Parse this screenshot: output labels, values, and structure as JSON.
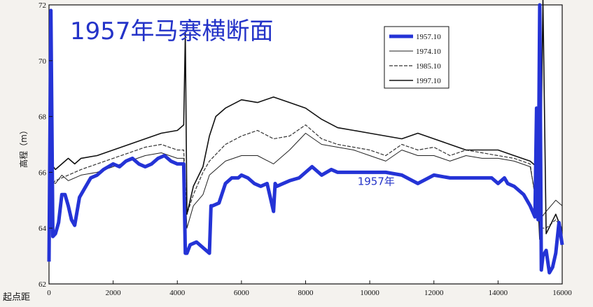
{
  "chart_data": {
    "type": "line",
    "title": "1957年马寨横断面",
    "ylabel": "高程（m）",
    "xlabel": "起点距",
    "xlim": [
      0,
      16000
    ],
    "ylim": [
      62,
      72
    ],
    "xticks": [
      0,
      2000,
      4000,
      6000,
      8000,
      10000,
      12000,
      14000,
      16000
    ],
    "yticks": [
      62,
      64,
      66,
      68,
      70,
      72
    ],
    "legend_position": "top-right",
    "annotation": {
      "text": "1957年",
      "x": 10200,
      "y": 65.55
    },
    "colors": {
      "1957.10": "#2433d6",
      "1974.10": "#222222",
      "1985.10": "#333333",
      "1997.10": "#111111"
    },
    "series": [
      {
        "name": "1957.10",
        "x": [
          0,
          60,
          120,
          200,
          300,
          400,
          500,
          600,
          700,
          800,
          950,
          1100,
          1300,
          1500,
          1700,
          2000,
          2200,
          2400,
          2600,
          2800,
          3000,
          3200,
          3400,
          3600,
          3800,
          4000,
          4200,
          4250,
          4300,
          4400,
          4600,
          4800,
          5000,
          5050,
          5100,
          5300,
          5500,
          5700,
          5900,
          6000,
          6200,
          6400,
          6600,
          6800,
          7000,
          7050,
          7100,
          7300,
          7500,
          7800,
          8000,
          8200,
          8500,
          8800,
          9000,
          9500,
          10000,
          10500,
          11000,
          11500,
          12000,
          12500,
          13000,
          13500,
          13800,
          14000,
          14200,
          14300,
          14500,
          14800,
          15000,
          15150,
          15200,
          15250,
          15300,
          15350,
          15400,
          15500,
          15600,
          15700,
          15800,
          15900,
          16000
        ],
        "y": [
          62.8,
          71.8,
          63.7,
          63.8,
          64.2,
          65.2,
          65.2,
          64.8,
          64.3,
          64.1,
          65.1,
          65.4,
          65.8,
          65.9,
          66.1,
          66.3,
          66.2,
          66.4,
          66.5,
          66.3,
          66.2,
          66.3,
          66.5,
          66.6,
          66.4,
          66.3,
          66.3,
          63.1,
          63.1,
          63.4,
          63.5,
          63.3,
          63.1,
          64.8,
          64.8,
          64.9,
          65.6,
          65.8,
          65.8,
          65.9,
          65.8,
          65.6,
          65.5,
          65.6,
          64.6,
          65.6,
          65.5,
          65.6,
          65.7,
          65.8,
          66.0,
          66.2,
          65.9,
          66.1,
          66.0,
          66.0,
          66.0,
          66.0,
          65.9,
          65.6,
          65.9,
          65.8,
          65.8,
          65.8,
          65.8,
          65.6,
          65.8,
          65.6,
          65.5,
          65.2,
          64.8,
          64.4,
          68.3,
          64.3,
          72.0,
          62.5,
          63.0,
          63.2,
          62.4,
          62.6,
          63.1,
          64.2,
          63.4
        ]
      },
      {
        "name": "1974.10",
        "x": [
          0,
          200,
          400,
          600,
          800,
          1000,
          1500,
          2000,
          2500,
          3000,
          3500,
          4000,
          4200,
          4300,
          4500,
          4800,
          5000,
          5500,
          6000,
          6500,
          7000,
          7500,
          8000,
          8500,
          9000,
          9500,
          10000,
          10500,
          11000,
          11500,
          12000,
          12500,
          13000,
          13500,
          14000,
          14500,
          15000,
          15300,
          15500,
          15800,
          16000
        ],
        "y": [
          65.7,
          65.6,
          65.9,
          65.7,
          65.8,
          65.9,
          66.0,
          66.2,
          66.4,
          66.6,
          66.7,
          66.5,
          66.5,
          64.0,
          64.8,
          65.2,
          65.9,
          66.4,
          66.6,
          66.6,
          66.3,
          66.8,
          67.4,
          67.0,
          66.9,
          66.8,
          66.6,
          66.4,
          66.8,
          66.6,
          66.6,
          66.4,
          66.6,
          66.5,
          66.5,
          66.4,
          66.2,
          64.3,
          64.6,
          65.0,
          64.8
        ]
      },
      {
        "name": "1985.10",
        "x": [
          0,
          200,
          400,
          600,
          800,
          1000,
          1500,
          2000,
          2500,
          3000,
          3500,
          4000,
          4200,
          4300,
          4500,
          4800,
          5000,
          5500,
          6000,
          6500,
          7000,
          7500,
          8000,
          8500,
          9000,
          9500,
          10000,
          10500,
          11000,
          11500,
          12000,
          12500,
          13000,
          13500,
          14000,
          14500,
          15000,
          15300,
          15500,
          15800,
          16000
        ],
        "y": [
          65.5,
          65.7,
          65.8,
          65.9,
          66.0,
          66.1,
          66.3,
          66.5,
          66.7,
          66.9,
          67.0,
          66.8,
          66.8,
          64.5,
          65.2,
          66.0,
          66.4,
          67.0,
          67.3,
          67.5,
          67.2,
          67.3,
          67.7,
          67.2,
          67.0,
          66.9,
          66.8,
          66.6,
          67.0,
          66.8,
          66.9,
          66.6,
          66.8,
          66.7,
          66.6,
          66.5,
          66.3,
          64.0,
          64.0,
          64.3,
          64.0
        ]
      },
      {
        "name": "1997.10",
        "x": [
          0,
          200,
          400,
          600,
          800,
          1000,
          1500,
          2000,
          2500,
          3000,
          3500,
          4000,
          4200,
          4250,
          4300,
          4500,
          4800,
          5000,
          5200,
          5500,
          6000,
          6500,
          7000,
          7500,
          8000,
          8500,
          9000,
          9500,
          10000,
          10500,
          11000,
          11500,
          12000,
          12500,
          13000,
          13500,
          14000,
          14500,
          15000,
          15200,
          15300,
          15400,
          15500,
          15800,
          16000
        ],
        "y": [
          66.4,
          66.1,
          66.3,
          66.5,
          66.3,
          66.5,
          66.6,
          66.8,
          67.0,
          67.2,
          67.4,
          67.5,
          67.7,
          71.0,
          64.5,
          65.5,
          66.2,
          67.3,
          68.0,
          68.3,
          68.6,
          68.5,
          68.7,
          68.5,
          68.3,
          67.9,
          67.6,
          67.5,
          67.4,
          67.3,
          67.2,
          67.4,
          67.2,
          67.0,
          66.8,
          66.8,
          66.8,
          66.6,
          66.4,
          66.2,
          63.6,
          72.2,
          63.8,
          64.5,
          63.9
        ]
      }
    ]
  }
}
